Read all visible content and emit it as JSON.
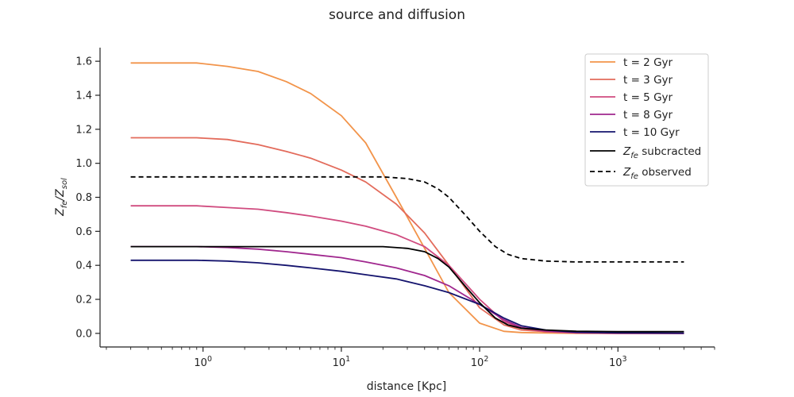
{
  "chart_data": {
    "type": "line",
    "title": "source and diffusion",
    "xlabel": "distance [Kpc]",
    "ylabel": "Z_fe/Z_sol",
    "xscale": "log",
    "xlim": [
      0.18,
      5000
    ],
    "ylim": [
      -0.08,
      1.68
    ],
    "yticks": [
      0.0,
      0.2,
      0.4,
      0.6,
      0.8,
      1.0,
      1.2,
      1.4,
      1.6
    ],
    "ytick_labels": [
      "0.0",
      "0.2",
      "0.4",
      "0.6",
      "0.8",
      "1.0",
      "1.2",
      "1.4",
      "1.6"
    ],
    "xticks_major": [
      1,
      10,
      100,
      1000
    ],
    "xtick_labels": [
      "10^0",
      "10^1",
      "10^2",
      "10^3"
    ],
    "legend_placement": "top-right",
    "grid": false,
    "series": [
      {
        "name": "t = 2 Gyr",
        "color": "#f2944a",
        "dash": "solid",
        "x": [
          0.3,
          0.9,
          1.5,
          2.5,
          4,
          6,
          10,
          15,
          25,
          40,
          60,
          100,
          150,
          200,
          300,
          500,
          1000,
          3000
        ],
        "y": [
          1.59,
          1.59,
          1.57,
          1.54,
          1.48,
          1.41,
          1.28,
          1.12,
          0.8,
          0.5,
          0.24,
          0.06,
          0.012,
          0.005,
          0.002,
          0.0,
          0.0,
          0.0
        ]
      },
      {
        "name": "t = 3 Gyr",
        "color": "#e36b5b",
        "dash": "solid",
        "x": [
          0.3,
          0.9,
          1.5,
          2.5,
          4,
          6,
          10,
          15,
          25,
          40,
          60,
          100,
          150,
          200,
          300,
          500,
          1000,
          3000
        ],
        "y": [
          1.15,
          1.15,
          1.14,
          1.11,
          1.07,
          1.03,
          0.96,
          0.89,
          0.76,
          0.59,
          0.4,
          0.15,
          0.05,
          0.02,
          0.01,
          0.003,
          0.0,
          0.0
        ]
      },
      {
        "name": "t = 5 Gyr",
        "color": "#d04b7f",
        "dash": "solid",
        "x": [
          0.3,
          0.9,
          1.5,
          2.5,
          4,
          6,
          10,
          15,
          25,
          40,
          60,
          100,
          150,
          200,
          300,
          500,
          1000,
          3000
        ],
        "y": [
          0.75,
          0.75,
          0.74,
          0.73,
          0.71,
          0.69,
          0.66,
          0.63,
          0.58,
          0.51,
          0.4,
          0.2,
          0.07,
          0.03,
          0.01,
          0.003,
          0.0,
          0.0
        ]
      },
      {
        "name": "t = 8 Gyr",
        "color": "#a0278e",
        "dash": "solid",
        "x": [
          0.3,
          0.9,
          1.5,
          2.5,
          4,
          6,
          10,
          15,
          25,
          40,
          60,
          100,
          150,
          200,
          300,
          500,
          1000,
          3000
        ],
        "y": [
          0.51,
          0.51,
          0.505,
          0.495,
          0.48,
          0.465,
          0.445,
          0.42,
          0.385,
          0.34,
          0.28,
          0.17,
          0.08,
          0.035,
          0.015,
          0.005,
          0.002,
          0.0
        ]
      },
      {
        "name": "t = 10 Gyr",
        "color": "#15146e",
        "dash": "solid",
        "x": [
          0.3,
          0.9,
          1.5,
          2.5,
          4,
          6,
          10,
          15,
          25,
          40,
          60,
          100,
          150,
          200,
          300,
          500,
          1000,
          3000
        ],
        "y": [
          0.43,
          0.43,
          0.425,
          0.415,
          0.4,
          0.385,
          0.365,
          0.345,
          0.32,
          0.28,
          0.24,
          0.17,
          0.09,
          0.045,
          0.02,
          0.007,
          0.003,
          0.001
        ]
      },
      {
        "name": "Z_fe subcracted",
        "color": "#000000",
        "dash": "solid",
        "x": [
          0.3,
          1,
          3,
          10,
          20,
          30,
          40,
          50,
          60,
          80,
          100,
          130,
          160,
          200,
          300,
          500,
          1000,
          3000
        ],
        "y": [
          0.51,
          0.51,
          0.51,
          0.51,
          0.51,
          0.5,
          0.48,
          0.44,
          0.39,
          0.27,
          0.18,
          0.09,
          0.05,
          0.03,
          0.02,
          0.013,
          0.01,
          0.01
        ]
      },
      {
        "name": "Z_fe observed",
        "color": "#000000",
        "dash": "dashed",
        "x": [
          0.3,
          1,
          3,
          10,
          20,
          30,
          40,
          50,
          60,
          80,
          100,
          130,
          160,
          200,
          300,
          500,
          1000,
          3000
        ],
        "y": [
          0.92,
          0.92,
          0.92,
          0.92,
          0.92,
          0.91,
          0.89,
          0.85,
          0.8,
          0.69,
          0.6,
          0.51,
          0.465,
          0.44,
          0.425,
          0.42,
          0.42,
          0.42
        ]
      }
    ]
  }
}
